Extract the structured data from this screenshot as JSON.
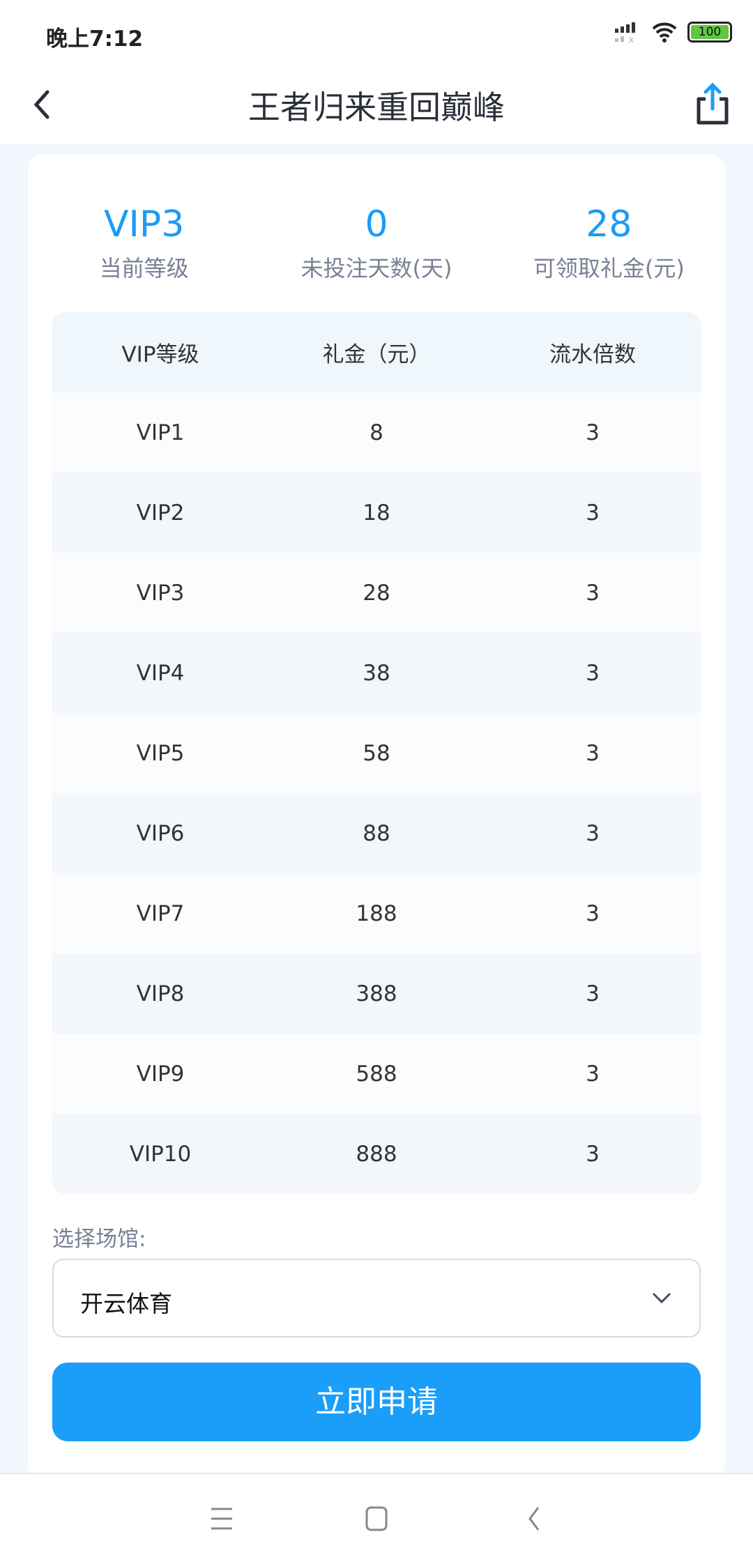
{
  "status_bar": {
    "time": "晚上7:12",
    "battery": "100",
    "icons": [
      "signal-icon",
      "wifi-icon",
      "battery-icon"
    ]
  },
  "header": {
    "title": "王者归来重回巅峰",
    "back_icon": "chevron-left-icon",
    "share_icon": "share-icon"
  },
  "stats": [
    {
      "value": "VIP3",
      "label": "当前等级"
    },
    {
      "value": "0",
      "label": "未投注天数(天)"
    },
    {
      "value": "28",
      "label": "可领取礼金(元)"
    }
  ],
  "table": {
    "headers": [
      "VIP等级",
      "礼金（元）",
      "流水倍数"
    ],
    "rows": [
      [
        "VIP1",
        "8",
        "3"
      ],
      [
        "VIP2",
        "18",
        "3"
      ],
      [
        "VIP3",
        "28",
        "3"
      ],
      [
        "VIP4",
        "38",
        "3"
      ],
      [
        "VIP5",
        "58",
        "3"
      ],
      [
        "VIP6",
        "88",
        "3"
      ],
      [
        "VIP7",
        "188",
        "3"
      ],
      [
        "VIP8",
        "388",
        "3"
      ],
      [
        "VIP9",
        "588",
        "3"
      ],
      [
        "VIP10",
        "888",
        "3"
      ]
    ]
  },
  "venue": {
    "label": "选择场馆:",
    "selected": "开云体育"
  },
  "submit_label": "立即申请",
  "colors": {
    "accent": "#1a9ef9",
    "page_bg": "#f1f7fd"
  }
}
